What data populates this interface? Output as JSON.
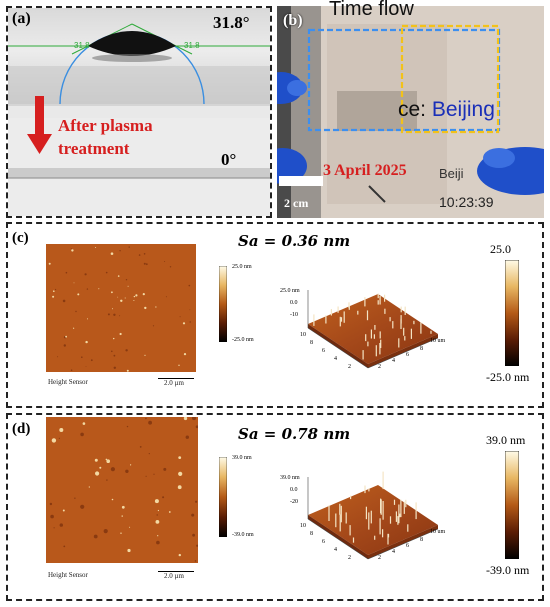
{
  "panel_a": {
    "label": "(a)",
    "angle_before": "31.8°",
    "left_angle_mark": "31.8",
    "right_angle_mark": "31.8",
    "arrow_text_line1": "After plasma",
    "arrow_text_line2": "treatment",
    "angle_after": "0°",
    "colors": {
      "arrow": "#d61f1f",
      "fit_circle": "#3a8ee0",
      "baseline": "#2faa3a"
    }
  },
  "panel_b": {
    "label": "(b)",
    "top_text": "Time flow",
    "place_text_prefix": "ce: ",
    "place_text": "Beijing",
    "date_text": "3 April 2025",
    "watermark_city": "Beiji",
    "time_text": "10:23:39",
    "scale_text": "2 cm",
    "colors": {
      "date": "#d61f1f",
      "place": "#1a2fb8",
      "box_blue": "#3c8ff0",
      "box_yellow": "#f2c21a",
      "glove": "#1f4fc9"
    }
  },
  "panel_c": {
    "label": "(c)",
    "sa_text": "Sa = 0.36 nm",
    "sensor_label": "Height Sensor",
    "scale_bar": "2.0 µm",
    "small_cb_top": "25.0 nm",
    "small_cb_bottom": "-25.0 nm",
    "big_cb_top": "25.0",
    "big_cb_bottom": "-25.0 nm",
    "z_ticks": [
      "25.0 nm",
      "0.0",
      "-10"
    ],
    "x_ticks": [
      "2",
      "4",
      "6",
      "8",
      "10 um"
    ],
    "y_ticks": [
      "10",
      "8",
      "6",
      "4",
      "2"
    ]
  },
  "panel_d": {
    "label": "(d)",
    "sa_text": "Sa = 0.78 nm",
    "sensor_label": "Height Sensor",
    "scale_bar": "2.0 µm",
    "small_cb_top": "39.0 nm",
    "small_cb_bottom": "-39.0 nm",
    "big_cb_top": "39.0 nm",
    "big_cb_bottom": "-39.0 nm",
    "z_ticks": [
      "39.0 nm",
      "0.0",
      "-20"
    ],
    "x_ticks": [
      "2",
      "4",
      "6",
      "8",
      "10 um"
    ],
    "y_ticks": [
      "10",
      "8",
      "6",
      "4",
      "2"
    ]
  }
}
